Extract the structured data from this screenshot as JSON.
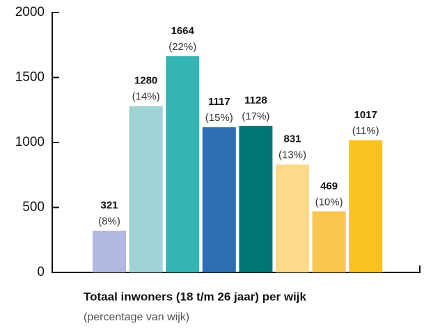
{
  "chart_data": {
    "type": "bar",
    "title": "Totaal inwoners (18 t/m 26 jaar) per wijk",
    "subtitle": "(percentage van wijk)",
    "categories": [
      null,
      null,
      null,
      null,
      null,
      null,
      null,
      null
    ],
    "values": [
      321,
      1280,
      1664,
      1117,
      1128,
      831,
      469,
      1017
    ],
    "percent_labels": [
      "(8%)",
      "(14%)",
      "(22%)",
      "(15%)",
      "(17%)",
      "(13%)",
      "(10%)",
      "(11%)"
    ],
    "colors": [
      "#b3b8e0",
      "#a0d3d3",
      "#33b5b3",
      "#2e6db4",
      "#007672",
      "#fdd98a",
      "#f9c74f",
      "#f9c21e"
    ],
    "ylim": [
      0,
      2000
    ],
    "yticks": [
      0,
      500,
      1000,
      1500,
      2000
    ],
    "grid": false
  }
}
